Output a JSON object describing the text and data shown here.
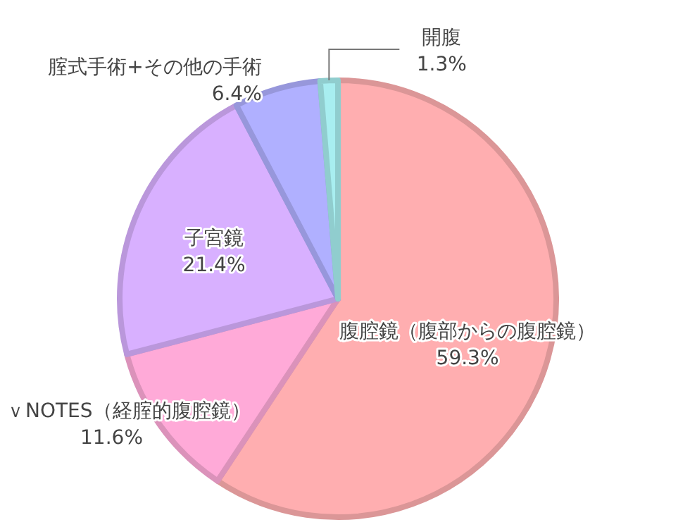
{
  "chart_data": {
    "type": "pie",
    "categories": [
      "腹腔鏡（腹部からの腹腔鏡）",
      "ｖNOTES（経腟的腹腔鏡）",
      "子宮鏡",
      "腟式手術+その他の手術",
      "開腹"
    ],
    "values": [
      59.3,
      11.6,
      21.4,
      6.4,
      1.3
    ],
    "value_labels": [
      "59.3%",
      "11.6%",
      "21.4%",
      "6.4%",
      "1.3%"
    ],
    "colors": [
      "#ffaeb0",
      "#ffaad8",
      "#d8b0ff",
      "#b0b0ff",
      "#a8eef0"
    ]
  }
}
